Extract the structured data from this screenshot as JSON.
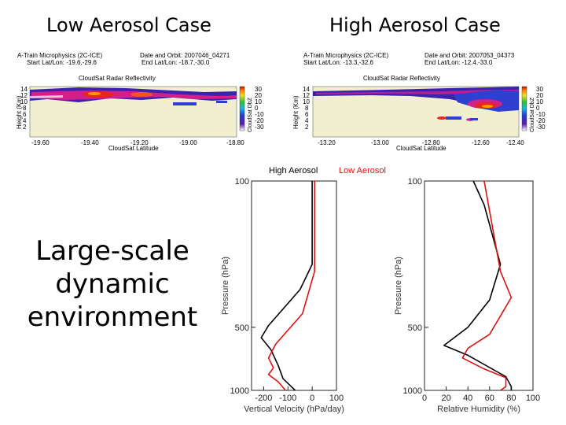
{
  "slide": {
    "heading_left": "Low Aerosol Case",
    "heading_right": "High Aerosol Case",
    "side_label_lines": [
      "Large-scale",
      "dynamic",
      "environment"
    ]
  },
  "radar_panels": [
    {
      "line1_left": "A-Train Microphysics (2C-ICE)",
      "line1_right": "Date and Orbit: 2007046_04271",
      "line2_left": "Start Lat/Lon: -19.6,-29.6",
      "line2_right": "End Lat/Lon: -18.7,-30.0",
      "title": "CloudSat Radar Reflectivity",
      "y_title": "Height (Km)",
      "y_ticks": [
        "14",
        "12",
        "10",
        "8",
        "6",
        "4",
        "2"
      ],
      "x_ticks": [
        "-19.60",
        "-19.40",
        "-19.20",
        "-19.00",
        "-18.80"
      ],
      "x_title": "CloudSat Latitude",
      "cb_title": "CloudSat DbZ",
      "cb_ticks": [
        "30",
        "20",
        "10",
        "0",
        "-10",
        "-20",
        "-30"
      ]
    },
    {
      "line1_left": "A-Train Microphysics (2C-ICE)",
      "line1_right": "Date and Orbit: 2007053_04373",
      "line2_left": "Start Lat/Lon: -13.3,-32.6",
      "line2_right": "End Lat/Lon: -12.4,-33.0",
      "title": "CloudSat Radar Reflectivity",
      "y_title": "Height (Km)",
      "y_ticks": [
        "14",
        "12",
        "10",
        "8",
        "6",
        "4",
        "2"
      ],
      "x_ticks": [
        "-13.20",
        "-13.00",
        "-12.80",
        "-12.60",
        "-12.40"
      ],
      "x_title": "CloudSat Latitude",
      "cb_title": "CloudSat DbZ",
      "cb_ticks": [
        "30",
        "20",
        "10",
        "0",
        "-10",
        "-20",
        "-30"
      ]
    }
  ],
  "profile_legend": {
    "high": "High Aerosol",
    "low": "Low Aerosol"
  },
  "colors": {
    "high": "#000000",
    "low": "#dd1111"
  },
  "chart_data": [
    {
      "type": "line",
      "title": "",
      "xlabel": "Vertical Velocity (hPa/day)",
      "ylabel": "Pressure (hPa)",
      "xlim": [
        -250,
        100
      ],
      "ylim": [
        1000,
        100
      ],
      "x_ticks": [
        -200,
        -100,
        0,
        100
      ],
      "x_tick_labels": [
        "-200",
        "-100",
        "0",
        "100"
      ],
      "y_ticks": [
        100,
        500,
        1000
      ],
      "y_tick_labels": [
        "100",
        "500",
        "1000"
      ],
      "series": [
        {
          "name": "High Aerosol",
          "color": "#000000",
          "points": [
            [
              0,
              100
            ],
            [
              0,
              250
            ],
            [
              -50,
              330
            ],
            [
              -180,
              490
            ],
            [
              -210,
              560
            ],
            [
              -170,
              640
            ],
            [
              -140,
              760
            ],
            [
              -120,
              880
            ],
            [
              -90,
              950
            ],
            [
              -70,
              1000
            ]
          ]
        },
        {
          "name": "Low Aerosol",
          "color": "#dd1111",
          "points": [
            [
              10,
              100
            ],
            [
              10,
              270
            ],
            [
              -40,
              430
            ],
            [
              -150,
              600
            ],
            [
              -180,
              700
            ],
            [
              -160,
              780
            ],
            [
              -180,
              840
            ],
            [
              -140,
              910
            ],
            [
              -110,
              1000
            ]
          ]
        }
      ]
    },
    {
      "type": "line",
      "title": "",
      "xlabel": "Relative Humidity (%)",
      "ylabel": "Pressure (hPa)",
      "xlim": [
        0,
        100
      ],
      "ylim": [
        1000,
        100
      ],
      "x_ticks": [
        0,
        20,
        40,
        60,
        80,
        100
      ],
      "x_tick_labels": [
        "0",
        "20",
        "40",
        "60",
        "80",
        "100"
      ],
      "y_ticks": [
        100,
        500,
        1000
      ],
      "y_tick_labels": [
        "100",
        "500",
        "1000"
      ],
      "series": [
        {
          "name": "High Aerosol",
          "color": "#000000",
          "points": [
            [
              45,
              100
            ],
            [
              55,
              130
            ],
            [
              70,
              250
            ],
            [
              60,
              370
            ],
            [
              40,
              500
            ],
            [
              18,
              610
            ],
            [
              40,
              680
            ],
            [
              75,
              860
            ],
            [
              80,
              960
            ],
            [
              80,
              1000
            ]
          ]
        },
        {
          "name": "Low Aerosol",
          "color": "#dd1111",
          "points": [
            [
              55,
              100
            ],
            [
              70,
              270
            ],
            [
              80,
              360
            ],
            [
              60,
              540
            ],
            [
              40,
              630
            ],
            [
              35,
              700
            ],
            [
              55,
              790
            ],
            [
              75,
              870
            ],
            [
              75,
              960
            ],
            [
              70,
              1000
            ]
          ]
        }
      ]
    }
  ]
}
